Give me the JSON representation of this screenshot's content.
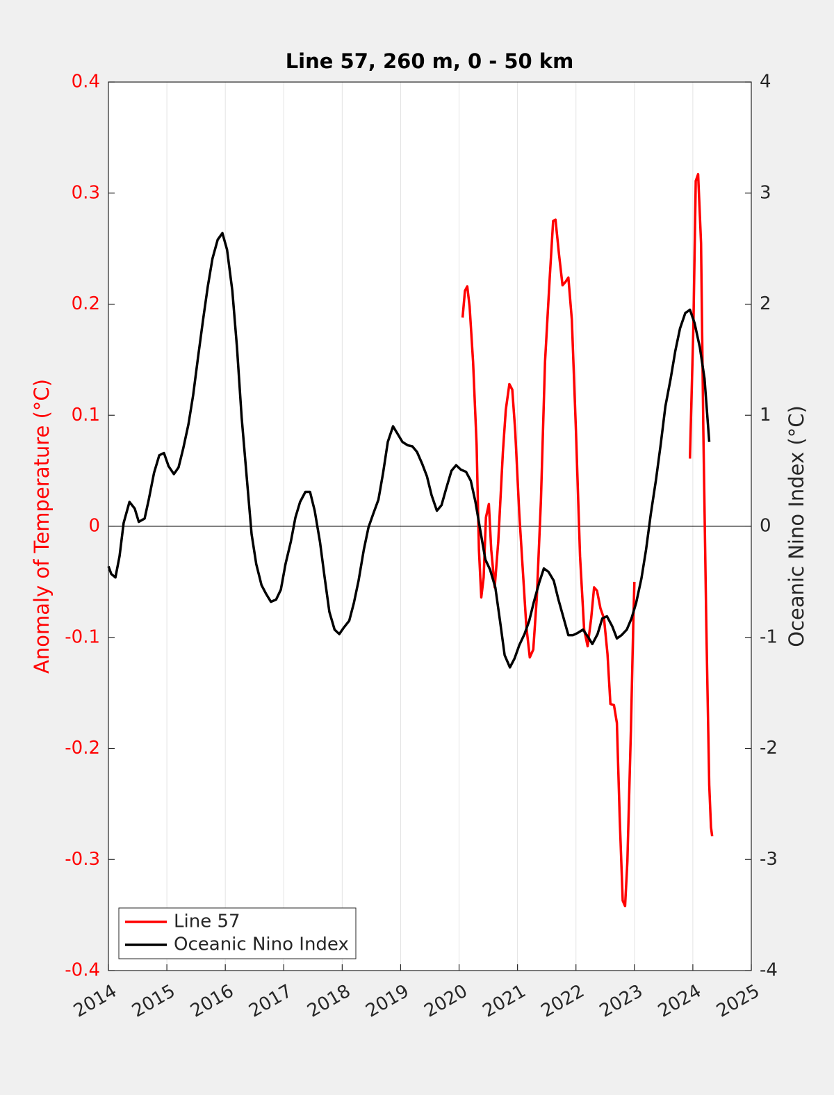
{
  "chart_data": {
    "type": "line",
    "title": "Line 57, 260 m, 0 - 50 km",
    "ylabel": "Anomaly of Temperature (°C)",
    "y2label": "Oceanic Nino Index (°C)",
    "xlim": [
      2014,
      2025
    ],
    "xticks": [
      2014,
      2015,
      2016,
      2017,
      2018,
      2019,
      2020,
      2021,
      2022,
      2023,
      2024,
      2025
    ],
    "ylim": [
      -0.4,
      0.4
    ],
    "yticks": [
      -0.4,
      -0.3,
      -0.2,
      -0.1,
      0,
      0.1,
      0.2,
      0.3,
      0.4
    ],
    "y2lim": [
      -4,
      4
    ],
    "y2ticks": [
      -4,
      -3,
      -2,
      -1,
      0,
      1,
      2,
      3,
      4
    ],
    "grid": true,
    "legend": "lower left",
    "series": [
      {
        "name": "Line 57",
        "color": "#ff0000",
        "x": [
          2020.06,
          2020.1,
          2020.14,
          2020.18,
          2020.24,
          2020.3,
          2020.34,
          2020.38,
          2020.42,
          2020.46,
          2020.51,
          2020.55,
          2020.61,
          2020.67,
          2020.75,
          2020.8,
          2020.86,
          2020.91,
          2020.96,
          2021.03,
          2021.09,
          2021.15,
          2021.21,
          2021.27,
          2021.33,
          2021.4,
          2021.47,
          2021.55,
          2021.61,
          2021.65,
          2021.71,
          2021.77,
          2021.82,
          2021.87,
          2021.93,
          2022.0,
          2022.07,
          2022.14,
          2022.2,
          2022.26,
          2022.31,
          2022.36,
          2022.42,
          2022.48,
          2022.54,
          2022.59,
          2022.65,
          2022.7,
          2022.75,
          2022.8,
          2022.84,
          2022.88,
          2022.94,
          2022.98,
          2023.0,
          2023.5,
          2023.95,
          2024.01,
          2024.05,
          2024.09,
          2024.14,
          2024.18,
          2024.23,
          2024.28,
          2024.31,
          2024.33
        ],
        "values": [
          0.188,
          0.212,
          0.216,
          0.198,
          0.148,
          0.073,
          -0.021,
          -0.064,
          -0.046,
          0.008,
          0.02,
          -0.021,
          -0.055,
          -0.014,
          0.067,
          0.105,
          0.128,
          0.123,
          0.086,
          0.011,
          -0.039,
          -0.09,
          -0.118,
          -0.111,
          -0.064,
          0.023,
          0.148,
          0.223,
          0.275,
          0.276,
          0.245,
          0.217,
          0.22,
          0.224,
          0.186,
          0.086,
          -0.027,
          -0.093,
          -0.108,
          -0.083,
          -0.055,
          -0.058,
          -0.074,
          -0.083,
          -0.115,
          -0.16,
          -0.161,
          -0.177,
          -0.265,
          -0.337,
          -0.342,
          -0.302,
          -0.183,
          -0.09,
          -0.05,
          null,
          0.061,
          0.18,
          0.311,
          0.317,
          0.255,
          0.086,
          -0.09,
          -0.233,
          -0.271,
          -0.279
        ]
      },
      {
        "name": "Oceanic Nino Index",
        "color": "#000000",
        "axis": "y2",
        "x": [
          2014.0,
          2014.05,
          2014.12,
          2014.19,
          2014.26,
          2014.36,
          2014.45,
          2014.52,
          2014.62,
          2014.69,
          2014.78,
          2014.87,
          2014.95,
          2015.03,
          2015.12,
          2015.2,
          2015.28,
          2015.37,
          2015.45,
          2015.53,
          2015.62,
          2015.7,
          2015.78,
          2015.87,
          2015.95,
          2016.03,
          2016.12,
          2016.2,
          2016.28,
          2016.37,
          2016.45,
          2016.53,
          2016.62,
          2016.7,
          2016.78,
          2016.87,
          2016.95,
          2017.03,
          2017.12,
          2017.2,
          2017.28,
          2017.37,
          2017.45,
          2017.53,
          2017.62,
          2017.7,
          2017.78,
          2017.87,
          2017.95,
          2018.03,
          2018.12,
          2018.2,
          2018.28,
          2018.37,
          2018.45,
          2018.53,
          2018.62,
          2018.7,
          2018.78,
          2018.87,
          2018.95,
          2019.03,
          2019.12,
          2019.2,
          2019.28,
          2019.37,
          2019.45,
          2019.53,
          2019.62,
          2019.7,
          2019.78,
          2019.87,
          2019.95,
          2020.03,
          2020.12,
          2020.2,
          2020.28,
          2020.37,
          2020.45,
          2020.53,
          2020.62,
          2020.7,
          2020.78,
          2020.87,
          2020.95,
          2021.03,
          2021.12,
          2021.2,
          2021.28,
          2021.37,
          2021.45,
          2021.53,
          2021.62,
          2021.7,
          2021.78,
          2021.87,
          2021.95,
          2022.03,
          2022.12,
          2022.2,
          2022.28,
          2022.37,
          2022.45,
          2022.53,
          2022.62,
          2022.7,
          2022.78,
          2022.87,
          2022.95,
          2023.03,
          2023.12,
          2023.2,
          2023.28,
          2023.37,
          2023.45,
          2023.53,
          2023.62,
          2023.7,
          2023.78,
          2023.87,
          2023.95,
          2024.03,
          2024.12,
          2024.2,
          2024.28
        ],
        "values": [
          -0.36,
          -0.43,
          -0.46,
          -0.27,
          0.03,
          0.22,
          0.16,
          0.04,
          0.07,
          0.24,
          0.48,
          0.64,
          0.66,
          0.54,
          0.47,
          0.53,
          0.7,
          0.92,
          1.18,
          1.51,
          1.86,
          2.16,
          2.41,
          2.58,
          2.64,
          2.49,
          2.12,
          1.61,
          0.98,
          0.42,
          -0.07,
          -0.34,
          -0.53,
          -0.61,
          -0.68,
          -0.66,
          -0.57,
          -0.34,
          -0.14,
          0.08,
          0.22,
          0.31,
          0.31,
          0.14,
          -0.14,
          -0.46,
          -0.77,
          -0.93,
          -0.97,
          -0.91,
          -0.85,
          -0.69,
          -0.49,
          -0.21,
          -0.01,
          0.11,
          0.24,
          0.48,
          0.76,
          0.9,
          0.83,
          0.76,
          0.73,
          0.72,
          0.67,
          0.56,
          0.45,
          0.28,
          0.14,
          0.19,
          0.34,
          0.5,
          0.55,
          0.51,
          0.49,
          0.41,
          0.22,
          -0.06,
          -0.3,
          -0.39,
          -0.55,
          -0.85,
          -1.16,
          -1.27,
          -1.19,
          -1.07,
          -0.97,
          -0.85,
          -0.68,
          -0.51,
          -0.38,
          -0.41,
          -0.49,
          -0.66,
          -0.81,
          -0.98,
          -0.98,
          -0.96,
          -0.93,
          -0.99,
          -1.06,
          -0.97,
          -0.83,
          -0.81,
          -0.9,
          -1.01,
          -0.98,
          -0.93,
          -0.83,
          -0.69,
          -0.47,
          -0.21,
          0.11,
          0.42,
          0.74,
          1.08,
          1.33,
          1.58,
          1.78,
          1.92,
          1.95,
          1.83,
          1.61,
          1.33,
          0.76
        ]
      }
    ]
  }
}
